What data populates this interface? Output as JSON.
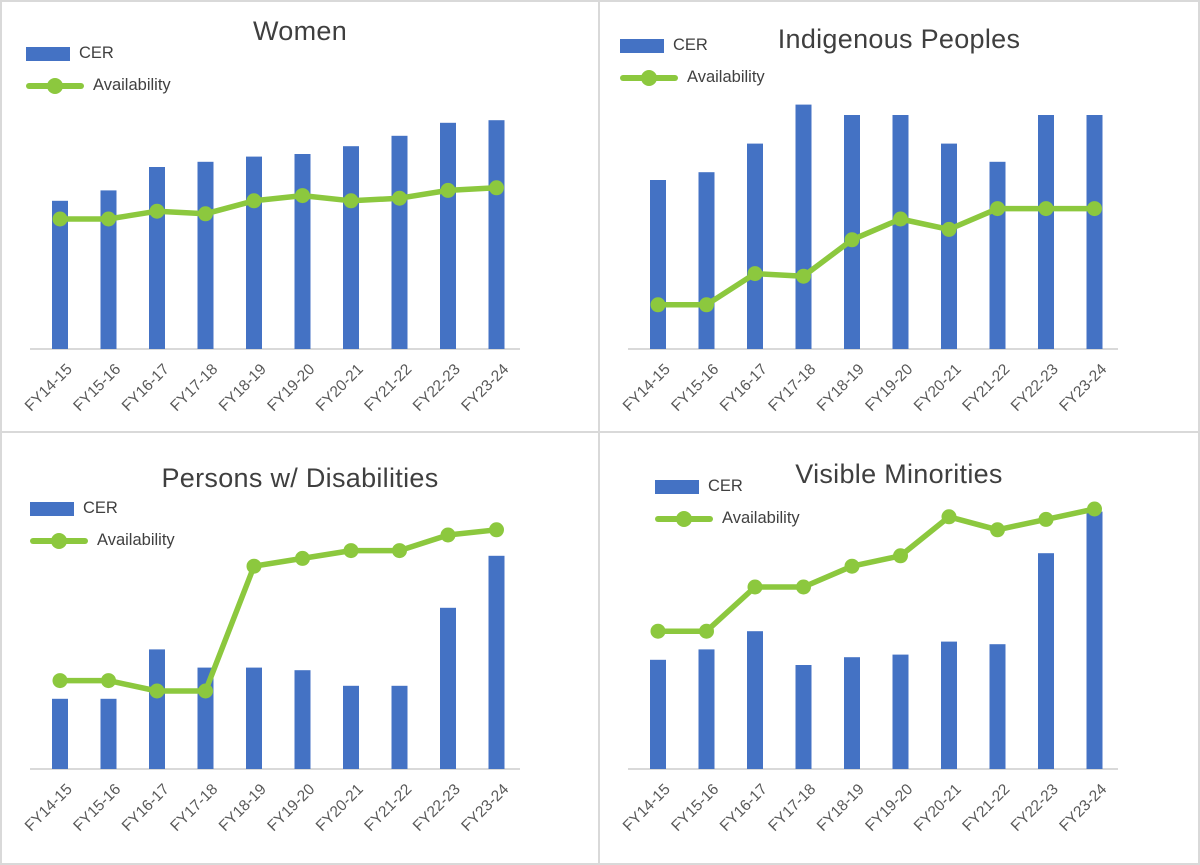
{
  "page": {
    "background": "#ffffff",
    "border_color": "#d9d9d9",
    "layout": "2x2 grid of combo charts"
  },
  "colors": {
    "bar": "#4472c4",
    "line": "#8cc83e",
    "marker": "#8cc83e",
    "title_text": "#3f3f3f",
    "legend_text": "#404040",
    "axis_label_text": "#595959",
    "baseline": "#d9d9d9"
  },
  "chart_data": {
    "type": "bar",
    "subtype": "combo bar+line, four panels",
    "grid": "off",
    "y_axis_shown": false,
    "value_units": "relative 0-100 scale (percent of plot height; source chart shows no y-axis labels)",
    "ylim": [
      0,
      100
    ],
    "legend_position": "top-left",
    "categories": [
      "FY14-15",
      "FY15-16",
      "FY16-17",
      "FY17-18",
      "FY18-19",
      "FY19-20",
      "FY20-21",
      "FY21-22",
      "FY22-23",
      "FY23-24"
    ],
    "charts": [
      {
        "title": "Women",
        "series": [
          {
            "name": "CER",
            "type": "bar",
            "values": [
              57,
              61,
              70,
              72,
              74,
              75,
              78,
              82,
              87,
              88
            ]
          },
          {
            "name": "Availability",
            "type": "line",
            "values": [
              50,
              50,
              53,
              52,
              57,
              59,
              57,
              58,
              61,
              62
            ]
          }
        ]
      },
      {
        "title": "Indigenous Peoples",
        "series": [
          {
            "name": "CER",
            "type": "bar",
            "values": [
              65,
              68,
              79,
              94,
              90,
              90,
              79,
              72,
              90,
              90
            ]
          },
          {
            "name": "Availability",
            "type": "line",
            "values": [
              17,
              17,
              29,
              28,
              42,
              50,
              46,
              54,
              54,
              54
            ]
          }
        ]
      },
      {
        "title": "Persons w/ Disabilities",
        "series": [
          {
            "name": "CER",
            "type": "bar",
            "values": [
              27,
              27,
              46,
              39,
              39,
              38,
              32,
              32,
              62,
              82
            ]
          },
          {
            "name": "Availability",
            "type": "line",
            "values": [
              34,
              34,
              30,
              30,
              78,
              81,
              84,
              84,
              90,
              92
            ]
          }
        ]
      },
      {
        "title": "Visible Minorities",
        "series": [
          {
            "name": "CER",
            "type": "bar",
            "values": [
              42,
              46,
              53,
              40,
              43,
              44,
              49,
              48,
              83,
              99
            ]
          },
          {
            "name": "Availability",
            "type": "line",
            "values": [
              53,
              53,
              70,
              70,
              78,
              82,
              97,
              92,
              96,
              100
            ]
          }
        ]
      }
    ]
  }
}
